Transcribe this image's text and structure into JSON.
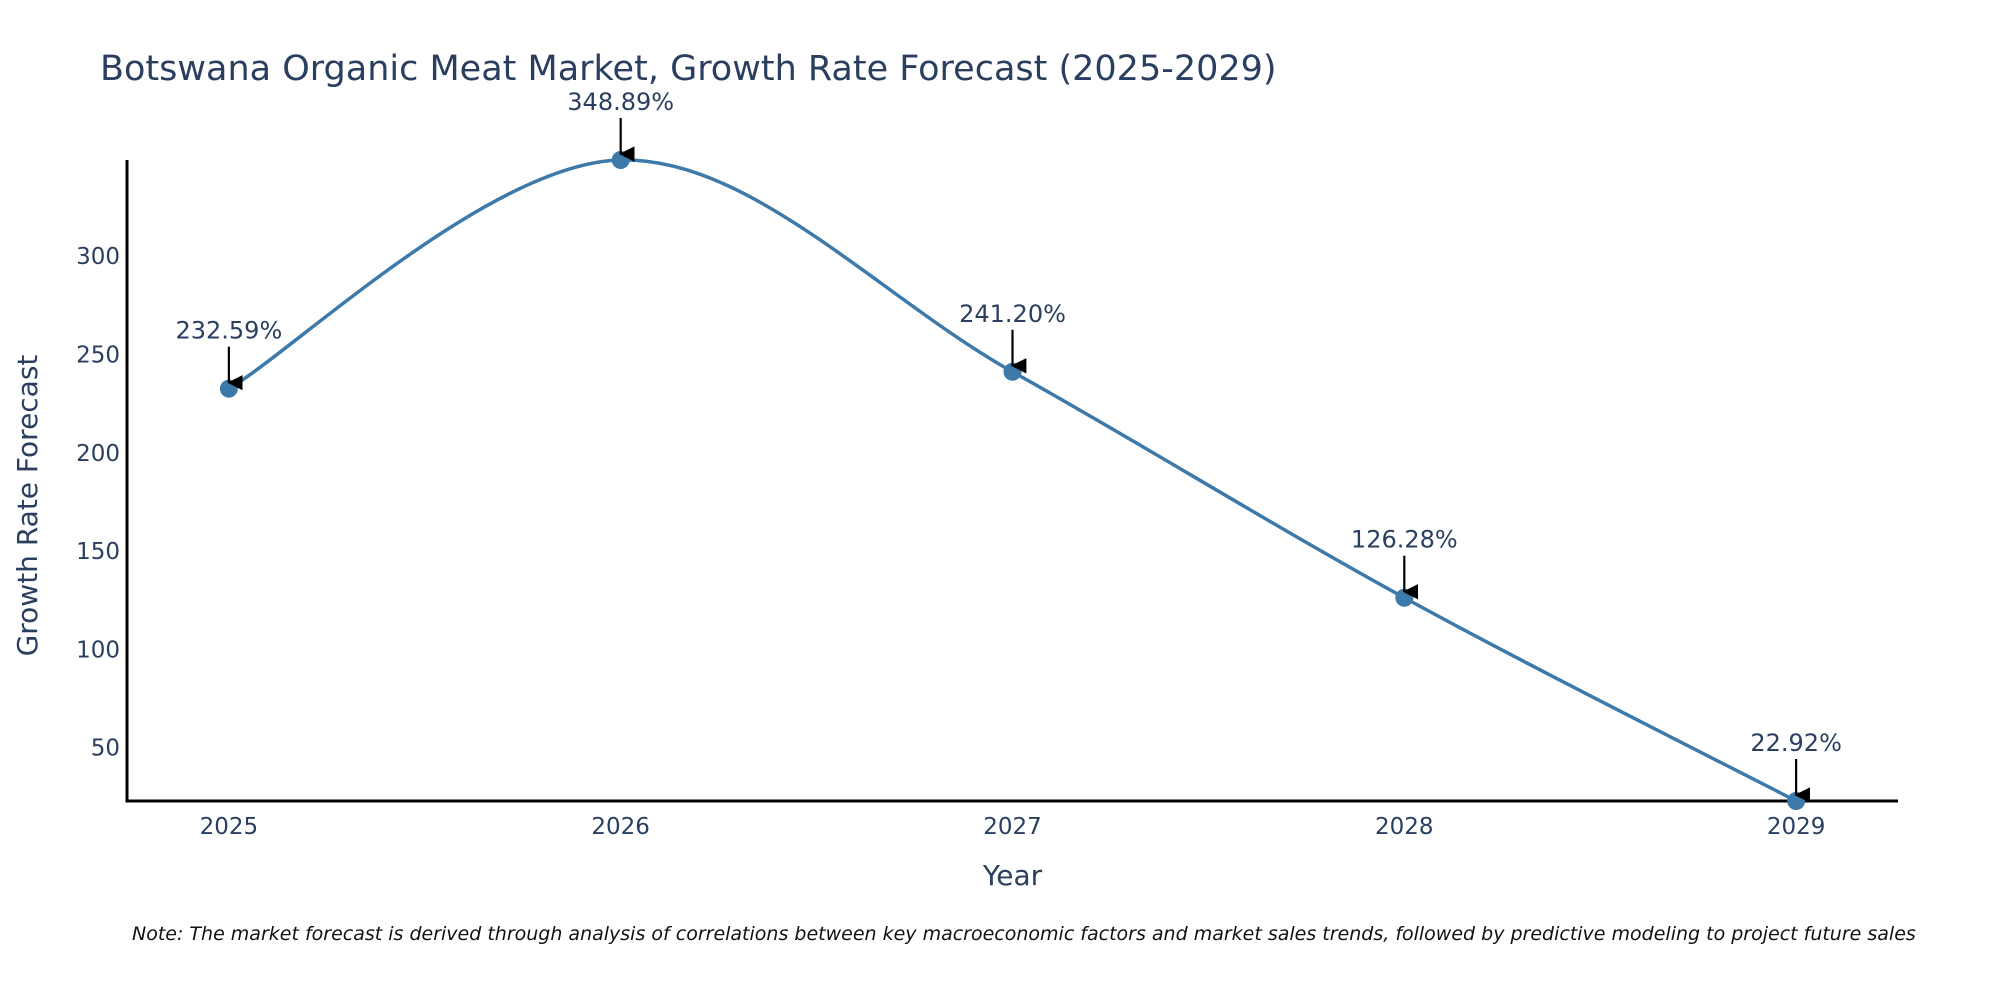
{
  "chart_data": {
    "type": "line",
    "title": "Botswana Organic Meat Market, Growth Rate Forecast (2025-2029)",
    "xlabel": "Year",
    "ylabel": "Growth Rate Forecast",
    "categories": [
      "2025",
      "2026",
      "2027",
      "2028",
      "2029"
    ],
    "x": [
      2025,
      2026,
      2027,
      2028,
      2029
    ],
    "series": [
      {
        "name": "Growth Rate Forecast",
        "values": [
          232.59,
          348.89,
          241.2,
          126.28,
          22.92
        ],
        "labels": [
          "232.59%",
          "348.89%",
          "241.20%",
          "126.28%",
          "22.92%"
        ],
        "color": "#3d7aaa"
      }
    ],
    "yticks": [
      50,
      100,
      150,
      200,
      250,
      300
    ],
    "ylim": [
      22.92,
      348.89
    ],
    "xlim": [
      2024.74,
      2029.26
    ],
    "grid": false,
    "line_shape": "spline",
    "note": "Note: The market forecast is derived through analysis of correlations between key macroeconomic factors and market sales trends, followed by predictive modeling to project future sales"
  },
  "colors": {
    "line": "#3d7aaa",
    "marker": "#3d7aaa",
    "text": "#2a3f5f",
    "axis": "#000000",
    "arrow": "#000000"
  }
}
